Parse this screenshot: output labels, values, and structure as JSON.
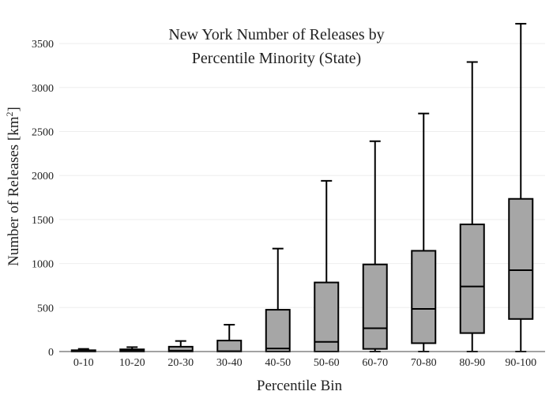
{
  "chart_data": {
    "type": "box",
    "title_line1": "New York Number of Releases by",
    "title_line2": "Percentile Minority (State)",
    "xlabel": "Percentile Bin",
    "ylabel_main": "Number of Releases  [km",
    "ylabel_sup": "2",
    "ylabel_close": "]",
    "ylim": [
      0,
      3750
    ],
    "yticks": [
      0,
      500,
      1000,
      1500,
      2000,
      2500,
      3000,
      3500
    ],
    "grid": true,
    "box_color": "#a6a6a6",
    "line_color": "#000000",
    "categories": [
      "0-10",
      "10-20",
      "20-30",
      "30-40",
      "40-50",
      "50-60",
      "60-70",
      "70-80",
      "80-90",
      "90-100"
    ],
    "boxes": [
      {
        "min": 0,
        "q1": 0,
        "median": 5,
        "q3": 15,
        "max": 30
      },
      {
        "min": 0,
        "q1": 0,
        "median": 10,
        "q3": 25,
        "max": 50
      },
      {
        "min": 0,
        "q1": 0,
        "median": 10,
        "q3": 55,
        "max": 120
      },
      {
        "min": 0,
        "q1": 0,
        "median": 5,
        "q3": 125,
        "max": 305
      },
      {
        "min": 0,
        "q1": 0,
        "median": 35,
        "q3": 475,
        "max": 1170
      },
      {
        "min": 0,
        "q1": 0,
        "median": 110,
        "q3": 785,
        "max": 1940
      },
      {
        "min": 0,
        "q1": 30,
        "median": 265,
        "q3": 990,
        "max": 2390
      },
      {
        "min": 0,
        "q1": 95,
        "median": 485,
        "q3": 1145,
        "max": 2705
      },
      {
        "min": 0,
        "q1": 210,
        "median": 740,
        "q3": 1445,
        "max": 3290
      },
      {
        "min": 0,
        "q1": 370,
        "median": 925,
        "q3": 1735,
        "max": 3725
      }
    ]
  }
}
